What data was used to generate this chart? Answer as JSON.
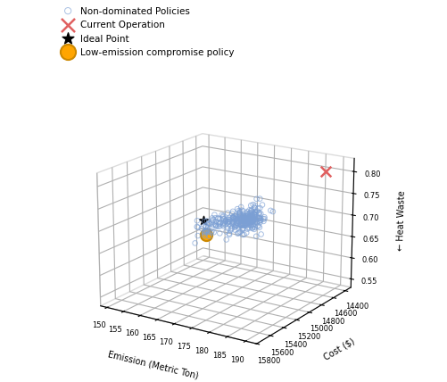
{
  "xlabel": "Emission (Metric Ton)",
  "ylabel": "Cost ($)",
  "zlabel": "← Heat Waste",
  "xlim": [
    148,
    193
  ],
  "ylim": [
    15800,
    14300
  ],
  "zlim": [
    0.53,
    0.83
  ],
  "xticks": [
    150,
    155,
    160,
    165,
    170,
    175,
    180,
    185,
    190
  ],
  "yticks": [
    14400,
    14600,
    14800,
    15000,
    15200,
    15400,
    15600,
    15800
  ],
  "zticks": [
    0.55,
    0.6,
    0.65,
    0.7,
    0.75,
    0.8
  ],
  "pareto_color": "#7b9fd4",
  "current_op_color": "#e06060",
  "ideal_color": "#000000",
  "compromise_color": "#FFA500",
  "compromise_edge": "#cc8800",
  "legend_labels": [
    "Non-dominated Policies",
    "Current Operation",
    "Ideal Point",
    "Low-emission compromise policy"
  ],
  "current_op": [
    188,
    14480,
    0.805
  ],
  "ideal_point": [
    149.5,
    14370,
    0.625
  ],
  "compromise": [
    151.5,
    14430,
    0.597
  ],
  "elev": 18,
  "azim": -57
}
